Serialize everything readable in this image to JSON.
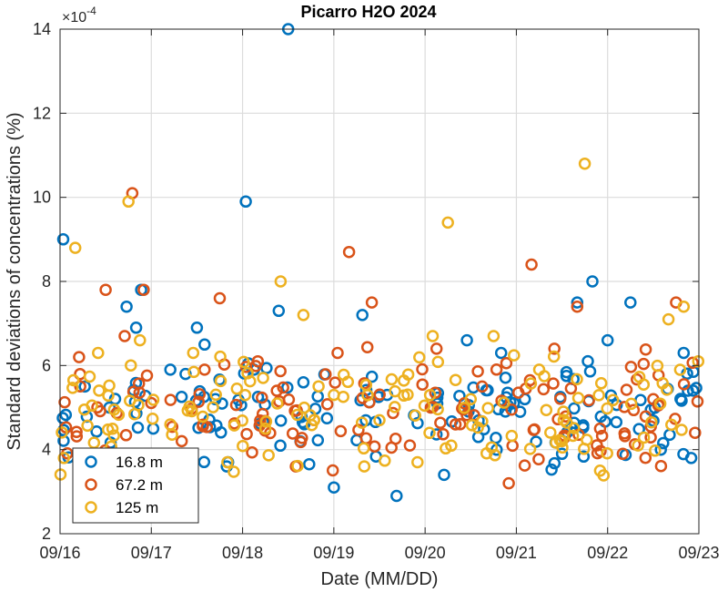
{
  "chart_data": {
    "type": "scatter",
    "title": "Picarro H2O 2024",
    "xlabel": "Date (MM/DD)",
    "ylabel": "Standard deviations of concentrations (%)",
    "y_exponent_label": "×10",
    "y_exponent_power": "-4",
    "x_ticks": [
      "09/16",
      "09/17",
      "09/18",
      "09/19",
      "09/20",
      "09/21",
      "09/22",
      "09/23"
    ],
    "xlim": [
      "2024-09-16",
      "2024-09-23"
    ],
    "y_ticks": [
      "2",
      "4",
      "6",
      "8",
      "10",
      "12",
      "14"
    ],
    "ylim": [
      2,
      14
    ],
    "grid": true,
    "legend_position": "bottom-left",
    "series": [
      {
        "name": "16.8 m",
        "color": "#0072BD",
        "points": [
          [
            "2024-09-16 00:50",
            9.0
          ],
          [
            "2024-09-16 06:30",
            5.5
          ],
          [
            "2024-09-16 13:00",
            5.0
          ],
          [
            "2024-09-16 17:30",
            7.4
          ],
          [
            "2024-09-16 20:00",
            6.9
          ],
          [
            "2024-09-16 21:20",
            7.8
          ],
          [
            "2024-09-17 00:30",
            4.5
          ],
          [
            "2024-09-17 09:00",
            5.8
          ],
          [
            "2024-09-17 12:00",
            6.9
          ],
          [
            "2024-09-17 14:00",
            6.5
          ],
          [
            "2024-09-18 00:50",
            9.9
          ],
          [
            "2024-09-18 03:00",
            5.9
          ],
          [
            "2024-09-18 09:30",
            7.3
          ],
          [
            "2024-09-18 12:00",
            14.0
          ],
          [
            "2024-09-18 16:00",
            5.6
          ],
          [
            "2024-09-19 00:00",
            3.1
          ],
          [
            "2024-09-19 07:30",
            7.2
          ],
          [
            "2024-09-19 14:00",
            5.3
          ],
          [
            "2024-09-19 16:30",
            2.9
          ],
          [
            "2024-09-20 05:00",
            3.4
          ],
          [
            "2024-09-20 11:00",
            6.6
          ],
          [
            "2024-09-20 14:00",
            4.3
          ],
          [
            "2024-09-20 20:00",
            6.3
          ],
          [
            "2024-09-21 01:00",
            4.9
          ],
          [
            "2024-09-21 12:00",
            3.9
          ],
          [
            "2024-09-21 16:00",
            7.5
          ],
          [
            "2024-09-21 20:00",
            8.0
          ],
          [
            "2024-09-22 00:00",
            6.6
          ],
          [
            "2024-09-22 06:00",
            7.5
          ],
          [
            "2024-09-22 14:00",
            4.0
          ],
          [
            "2024-09-22 20:00",
            6.3
          ],
          [
            "2024-09-22 22:00",
            3.8
          ]
        ]
      },
      {
        "name": "67.2 m",
        "color": "#D95319",
        "points": [
          [
            "2024-09-16 05:00",
            6.2
          ],
          [
            "2024-09-16 12:00",
            7.8
          ],
          [
            "2024-09-16 17:00",
            6.7
          ],
          [
            "2024-09-16 19:00",
            10.1
          ],
          [
            "2024-09-16 22:00",
            7.8
          ],
          [
            "2024-09-17 08:00",
            4.2
          ],
          [
            "2024-09-17 14:00",
            5.9
          ],
          [
            "2024-09-17 18:00",
            7.6
          ],
          [
            "2024-09-18 04:00",
            6.1
          ],
          [
            "2024-09-18 09:00",
            5.4
          ],
          [
            "2024-09-18 14:00",
            3.6
          ],
          [
            "2024-09-19 01:00",
            6.3
          ],
          [
            "2024-09-19 04:00",
            8.7
          ],
          [
            "2024-09-19 10:00",
            7.5
          ],
          [
            "2024-09-19 20:00",
            4.1
          ],
          [
            "2024-09-20 03:00",
            6.4
          ],
          [
            "2024-09-20 08:00",
            4.6
          ],
          [
            "2024-09-20 15:00",
            5.5
          ],
          [
            "2024-09-20 22:00",
            3.2
          ],
          [
            "2024-09-21 04:00",
            8.4
          ],
          [
            "2024-09-21 10:00",
            6.4
          ],
          [
            "2024-09-21 16:00",
            7.4
          ],
          [
            "2024-09-21 22:00",
            4.5
          ],
          [
            "2024-09-22 04:00",
            3.9
          ],
          [
            "2024-09-22 12:00",
            5.2
          ],
          [
            "2024-09-22 18:00",
            7.5
          ],
          [
            "2024-09-22 23:00",
            4.4
          ]
        ]
      },
      {
        "name": "125 m",
        "color": "#EDB120",
        "points": [
          [
            "2024-09-16 01:00",
            3.8
          ],
          [
            "2024-09-16 04:00",
            8.8
          ],
          [
            "2024-09-16 10:00",
            6.3
          ],
          [
            "2024-09-16 18:00",
            9.9
          ],
          [
            "2024-09-16 21:00",
            6.6
          ],
          [
            "2024-09-17 05:00",
            4.6
          ],
          [
            "2024-09-17 11:00",
            6.3
          ],
          [
            "2024-09-17 20:00",
            3.7
          ],
          [
            "2024-09-18 06:00",
            4.5
          ],
          [
            "2024-09-18 10:00",
            8.0
          ],
          [
            "2024-09-18 16:00",
            7.2
          ],
          [
            "2024-09-19 00:00",
            5.3
          ],
          [
            "2024-09-19 08:00",
            3.6
          ],
          [
            "2024-09-19 12:00",
            4.7
          ],
          [
            "2024-09-19 22:00",
            3.7
          ],
          [
            "2024-09-20 02:00",
            6.7
          ],
          [
            "2024-09-20 06:00",
            9.4
          ],
          [
            "2024-09-20 12:00",
            5.2
          ],
          [
            "2024-09-20 18:00",
            6.7
          ],
          [
            "2024-09-21 06:00",
            5.9
          ],
          [
            "2024-09-21 12:00",
            4.2
          ],
          [
            "2024-09-21 18:00",
            10.8
          ],
          [
            "2024-09-21 22:00",
            3.5
          ],
          [
            "2024-09-22 08:00",
            4.1
          ],
          [
            "2024-09-22 16:00",
            7.1
          ],
          [
            "2024-09-22 20:00",
            7.4
          ],
          [
            "2024-09-22 23:50",
            6.1
          ]
        ]
      }
    ],
    "dense_cloud": {
      "y_range": [
        3.3,
        6.5
      ],
      "points_per_series": 130
    }
  }
}
